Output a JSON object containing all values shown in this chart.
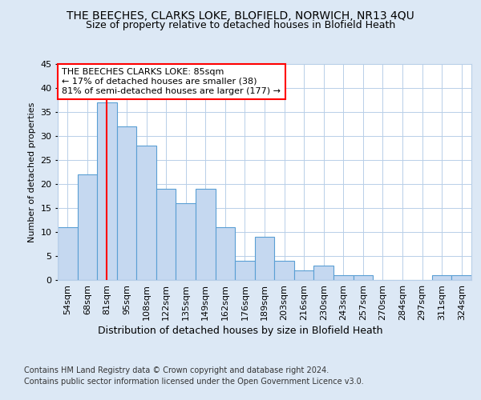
{
  "title1": "THE BEECHES, CLARKS LOKE, BLOFIELD, NORWICH, NR13 4QU",
  "title2": "Size of property relative to detached houses in Blofield Heath",
  "xlabel": "Distribution of detached houses by size in Blofield Heath",
  "ylabel": "Number of detached properties",
  "footer1": "Contains HM Land Registry data © Crown copyright and database right 2024.",
  "footer2": "Contains public sector information licensed under the Open Government Licence v3.0.",
  "categories": [
    "54sqm",
    "68sqm",
    "81sqm",
    "95sqm",
    "108sqm",
    "122sqm",
    "135sqm",
    "149sqm",
    "162sqm",
    "176sqm",
    "189sqm",
    "203sqm",
    "216sqm",
    "230sqm",
    "243sqm",
    "257sqm",
    "270sqm",
    "284sqm",
    "297sqm",
    "311sqm",
    "324sqm"
  ],
  "values": [
    11,
    22,
    37,
    32,
    28,
    19,
    16,
    19,
    11,
    4,
    9,
    4,
    2,
    3,
    1,
    1,
    0,
    0,
    0,
    1,
    1
  ],
  "bar_color": "#c5d8f0",
  "bar_edge_color": "#5a9fd4",
  "red_line_index": 2,
  "annotation_text": "THE BEECHES CLARKS LOKE: 85sqm\n← 17% of detached houses are smaller (38)\n81% of semi-detached houses are larger (177) →",
  "annotation_box_color": "white",
  "annotation_border_color": "red",
  "red_line_color": "red",
  "ylim": [
    0,
    45
  ],
  "yticks": [
    0,
    5,
    10,
    15,
    20,
    25,
    30,
    35,
    40,
    45
  ],
  "background_color": "#dce8f5",
  "plot_background": "white",
  "grid_color": "#b8cfe8",
  "title1_fontsize": 10,
  "title2_fontsize": 9,
  "xlabel_fontsize": 9,
  "ylabel_fontsize": 8,
  "tick_fontsize": 8,
  "footer_fontsize": 7
}
